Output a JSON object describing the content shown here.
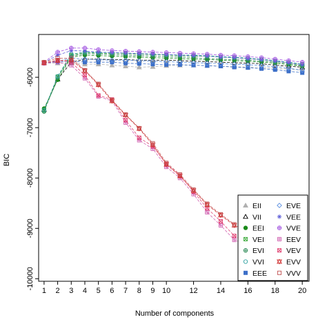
{
  "chart_data": {
    "type": "line",
    "title": "",
    "xlabel": "Number of components",
    "ylabel": "BIC",
    "xlim": [
      0.6,
      20.5
    ],
    "ylim": [
      -10050,
      -5150
    ],
    "x": [
      1,
      2,
      3,
      4,
      5,
      6,
      7,
      8,
      9,
      10,
      11,
      12,
      13,
      14,
      15,
      16,
      17,
      18,
      19,
      20
    ],
    "x_ticks": [
      1,
      2,
      3,
      4,
      5,
      6,
      7,
      8,
      9,
      10,
      12,
      14,
      16,
      18,
      20
    ],
    "y_ticks": [
      -10000,
      -9000,
      -8000,
      -7000,
      -6000
    ],
    "grid": false,
    "legend_position": "bottom-right",
    "legend_columns": [
      [
        "EII",
        "VII",
        "EEI",
        "VEI",
        "EVI",
        "VVI",
        "EEE"
      ],
      [
        "EVE",
        "VEE",
        "VVE",
        "EEV",
        "VEV",
        "EVV",
        "VVV"
      ]
    ],
    "series": [
      {
        "name": "EII",
        "color": "#b0b0b0",
        "marker": "triangle-filled",
        "values": [
          -5720,
          -5720,
          -5720,
          -5740,
          -5740,
          -5760,
          -5780,
          -5800,
          -5790,
          -5770,
          -5760,
          -5760,
          -5770,
          -5780,
          -5790,
          -5800,
          -5810,
          -5820,
          -5840,
          -5860
        ]
      },
      {
        "name": "VII",
        "color": "#000000",
        "marker": "triangle-open",
        "values": [
          -6640,
          -6040,
          -5700,
          -5640,
          -5640,
          -5650,
          -5650,
          -5660,
          -5660,
          -5660,
          -5670,
          -5680,
          -5690,
          -5700,
          -5710,
          -5720,
          -5730,
          -5760,
          -5780,
          -5800
        ]
      },
      {
        "name": "EEI",
        "color": "#1a8a1a",
        "marker": "circle-filled",
        "values": [
          -6620,
          -6050,
          -5600,
          -5560,
          -5570,
          -5580,
          -5590,
          -5600,
          -5610,
          -5620,
          -5630,
          -5640,
          -5650,
          -5660,
          -5670,
          -5680,
          -5700,
          -5720,
          -5750,
          -5780
        ]
      },
      {
        "name": "VEI",
        "color": "#3aaa3a",
        "marker": "square-cross",
        "values": [
          -6660,
          -5990,
          -5560,
          -5510,
          -5520,
          -5530,
          -5530,
          -5540,
          -5550,
          -5560,
          -5570,
          -5580,
          -5580,
          -5600,
          -5610,
          -5630,
          -5650,
          -5680,
          -5710,
          -5750
        ]
      },
      {
        "name": "EVI",
        "color": "#2e8b57",
        "marker": "circle-plus",
        "values": [
          -6680,
          -6010,
          -5580,
          -5530,
          -5540,
          -5550,
          -5560,
          -5570,
          -5580,
          -5590,
          -5600,
          -5610,
          -5630,
          -5640,
          -5650,
          -5660,
          -5680,
          -5700,
          -5730,
          -5770
        ]
      },
      {
        "name": "VVI",
        "color": "#2ea0a0",
        "marker": "circle-open",
        "values": [
          -6650,
          -5980,
          -5540,
          -5500,
          -5510,
          -5510,
          -5520,
          -5530,
          -5540,
          -5550,
          -5560,
          -5560,
          -5570,
          -5590,
          -5600,
          -5620,
          -5640,
          -5670,
          -5700,
          -5740
        ]
      },
      {
        "name": "EEE",
        "color": "#3c6fc8",
        "marker": "square-filled",
        "values": [
          -5720,
          -5700,
          -5680,
          -5700,
          -5700,
          -5700,
          -5720,
          -5730,
          -5740,
          -5750,
          -5750,
          -5760,
          -5770,
          -5780,
          -5800,
          -5810,
          -5830,
          -5850,
          -5880,
          -5910
        ]
      },
      {
        "name": "EVE",
        "color": "#5b8fe0",
        "marker": "diamond-open",
        "values": [
          -5720,
          -5680,
          -5620,
          -5640,
          -5650,
          -5660,
          -5660,
          -5670,
          -5680,
          -5690,
          -5700,
          -5710,
          -5720,
          -5730,
          -5740,
          -5750,
          -5770,
          -5790,
          -5820,
          -5860
        ]
      },
      {
        "name": "VEE",
        "color": "#6060d8",
        "marker": "asterisk",
        "values": [
          -5710,
          -5560,
          -5470,
          -5480,
          -5500,
          -5510,
          -5520,
          -5530,
          -5540,
          -5550,
          -5560,
          -5570,
          -5580,
          -5600,
          -5610,
          -5630,
          -5650,
          -5680,
          -5710,
          -5750
        ]
      },
      {
        "name": "VVE",
        "color": "#a050e0",
        "marker": "circle-plus",
        "values": [
          -5700,
          -5500,
          -5420,
          -5420,
          -5450,
          -5470,
          -5480,
          -5490,
          -5500,
          -5510,
          -5520,
          -5530,
          -5540,
          -5560,
          -5570,
          -5590,
          -5610,
          -5640,
          -5670,
          -5700
        ]
      },
      {
        "name": "EEV",
        "color": "#d060b0",
        "marker": "square-plus",
        "values": [
          -5720,
          -5700,
          -5760,
          -6020,
          -6380,
          -6470,
          -6900,
          -7250,
          -7420,
          -7780,
          -8000,
          -8320,
          -8680,
          -8940,
          -9230,
          -9330,
          -9450,
          -9600,
          -9750,
          -9900
        ]
      },
      {
        "name": "VEV",
        "color": "#e04070",
        "marker": "square-cross",
        "values": [
          -5720,
          -5660,
          -5700,
          -5960,
          -6360,
          -6440,
          -6850,
          -7200,
          -7370,
          -7720,
          -7950,
          -8270,
          -8600,
          -8860,
          -9150,
          -9280,
          -9390,
          -9550,
          -9720,
          -9870
        ]
      },
      {
        "name": "EVV",
        "color": "#d03030",
        "marker": "star",
        "values": [
          -5710,
          -5670,
          -5660,
          -5870,
          -6150,
          -6470,
          -6750,
          -7020,
          -7340,
          -7730,
          -7960,
          -8250,
          -8530,
          -8740,
          -8940,
          -9120,
          -9290,
          -9450,
          -9600,
          -9760
        ]
      },
      {
        "name": "VVV",
        "color": "#c05050",
        "marker": "square-open",
        "values": [
          -5700,
          -5620,
          -5620,
          -5860,
          -6130,
          -6450,
          -6740,
          -7010,
          -7310,
          -7700,
          -7930,
          -8230,
          -8510,
          -8720,
          -8920,
          -9100,
          -9270,
          -9430,
          -9580,
          -9740
        ]
      }
    ]
  }
}
